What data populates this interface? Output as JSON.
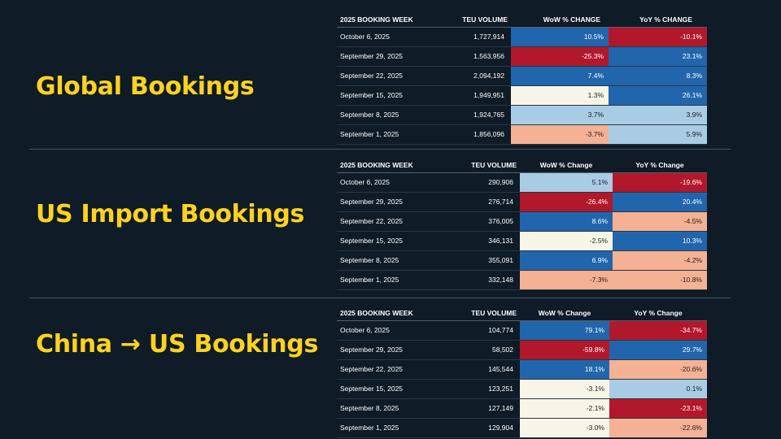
{
  "colors": {
    "background": "#0f1b26",
    "title": "#ffd21f",
    "dark_blue": "#2166ac",
    "light_blue": "#a8cce4",
    "cream": "#f7f4e8",
    "salmon": "#f4b194",
    "red": "#b2182b"
  },
  "sections": [
    {
      "title": "Global Bookings",
      "headers": [
        "2025 BOOKING WEEK",
        "TEU VOLUME",
        "WoW % CHANGE",
        "YoY % CHANGE"
      ],
      "rows": [
        {
          "week": "October 6, 2025",
          "teu": "1,727,914",
          "wow": "10.5%",
          "wow_c": "dblue",
          "yoy": "-10.1%",
          "yoy_c": "red"
        },
        {
          "week": "September 29, 2025",
          "teu": "1,563,956",
          "wow": "-25.3%",
          "wow_c": "red",
          "yoy": "23.1%",
          "yoy_c": "dblue"
        },
        {
          "week": "September 22, 2025",
          "teu": "2,094,192",
          "wow": "7.4%",
          "wow_c": "dblue",
          "yoy": "8.3%",
          "yoy_c": "dblue"
        },
        {
          "week": "September 15, 2025",
          "teu": "1,949,951",
          "wow": "1.3%",
          "wow_c": "cream",
          "yoy": "26.1%",
          "yoy_c": "dblue"
        },
        {
          "week": "September 8, 2025",
          "teu": "1,924,765",
          "wow": "3.7%",
          "wow_c": "lblue",
          "yoy": "3.9%",
          "yoy_c": "lblue"
        },
        {
          "week": "September 1, 2025",
          "teu": "1,856,096",
          "wow": "-3.7%",
          "wow_c": "salmon",
          "yoy": "5.9%",
          "yoy_c": "lblue"
        }
      ]
    },
    {
      "title": "US Import Bookings",
      "headers": [
        "2025 BOOKING WEEK",
        "TEU VOLUME",
        "WoW % Change",
        "YoY % Change"
      ],
      "rows": [
        {
          "week": "October 6, 2025",
          "teu": "290,906",
          "wow": "5.1%",
          "wow_c": "lblue",
          "yoy": "-19.6%",
          "yoy_c": "red"
        },
        {
          "week": "September 29, 2025",
          "teu": "276,714",
          "wow": "-26.4%",
          "wow_c": "red",
          "yoy": "20.4%",
          "yoy_c": "dblue"
        },
        {
          "week": "September 22, 2025",
          "teu": "376,005",
          "wow": "8.6%",
          "wow_c": "dblue",
          "yoy": "-4.5%",
          "yoy_c": "salmon"
        },
        {
          "week": "September 15, 2025",
          "teu": "346,131",
          "wow": "-2.5%",
          "wow_c": "cream",
          "yoy": "10.3%",
          "yoy_c": "dblue"
        },
        {
          "week": "September 8, 2025",
          "teu": "355,091",
          "wow": "6.9%",
          "wow_c": "dblue",
          "yoy": "-4.2%",
          "yoy_c": "salmon"
        },
        {
          "week": "September 1, 2025",
          "teu": "332,148",
          "wow": "-7.3%",
          "wow_c": "salmon",
          "yoy": "-10.8%",
          "yoy_c": "salmon"
        }
      ]
    },
    {
      "title": "China → US Bookings",
      "headers": [
        "2025 BOOKING WEEK",
        "TEU VOLUME",
        "WoW % Change",
        "YoY % Change"
      ],
      "rows": [
        {
          "week": "October 6, 2025",
          "teu": "104,774",
          "wow": "79.1%",
          "wow_c": "dblue",
          "yoy": "-34.7%",
          "yoy_c": "red"
        },
        {
          "week": "September 29, 2025",
          "teu": "58,502",
          "wow": "-59.8%",
          "wow_c": "red",
          "yoy": "29.7%",
          "yoy_c": "dblue"
        },
        {
          "week": "September 22, 2025",
          "teu": "145,544",
          "wow": "18.1%",
          "wow_c": "dblue",
          "yoy": "-20.6%",
          "yoy_c": "salmon"
        },
        {
          "week": "September 15, 2025",
          "teu": "123,251",
          "wow": "-3.1%",
          "wow_c": "cream",
          "yoy": "0.1%",
          "yoy_c": "lblue"
        },
        {
          "week": "September 8, 2025",
          "teu": "127,149",
          "wow": "-2.1%",
          "wow_c": "cream",
          "yoy": "-23.1%",
          "yoy_c": "red"
        },
        {
          "week": "September 1, 2025",
          "teu": "129,904",
          "wow": "-3.0%",
          "wow_c": "cream",
          "yoy": "-22.6%",
          "yoy_c": "salmon"
        }
      ]
    }
  ]
}
